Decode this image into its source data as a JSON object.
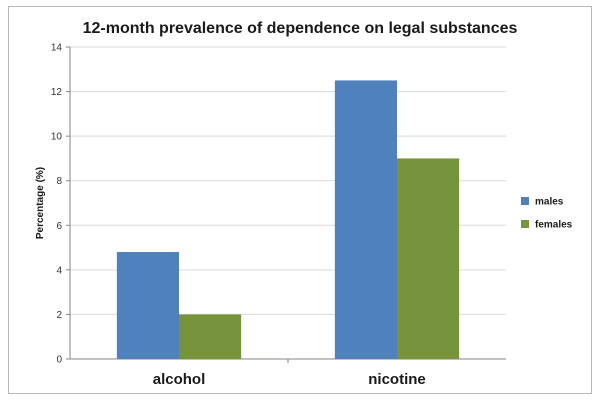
{
  "chart_data": {
    "type": "bar",
    "title": "12-month prevalence of dependence on legal substances",
    "xlabel": "",
    "ylabel": "Percentage (%)",
    "categories": [
      "alcohol",
      "nicotine"
    ],
    "series": [
      {
        "name": "males",
        "values": [
          4.8,
          12.5
        ],
        "color": "#4f81bd"
      },
      {
        "name": "females",
        "values": [
          2.0,
          9.0
        ],
        "color": "#77933c"
      }
    ],
    "ylim": [
      0,
      14
    ],
    "yticks": [
      0,
      2,
      4,
      6,
      8,
      10,
      12,
      14
    ],
    "grid": true,
    "legend_position": "right"
  }
}
